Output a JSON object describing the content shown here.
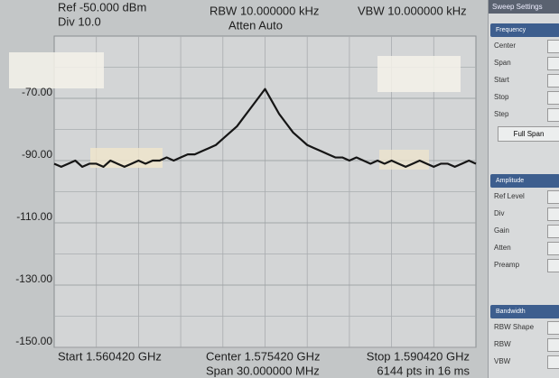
{
  "chart_data": {
    "type": "line",
    "header": {
      "ref": "Ref -50.000 dBm",
      "div": "Div 10.0",
      "rbw": "RBW 10.000000 kHz",
      "atten": "Atten Auto",
      "vbw": "VBW 10.000000 kHz"
    },
    "footer": {
      "start": "Start 1.560420 GHz",
      "center": "Center 1.575420 GHz",
      "span": "Span 30.000000 MHz",
      "stop": "Stop 1.590420 GHz",
      "points": "6144 pts in 16 ms"
    },
    "x": [
      1.56042,
      1.56092,
      1.56142,
      1.56192,
      1.56242,
      1.56292,
      1.56342,
      1.56392,
      1.56442,
      1.56492,
      1.56542,
      1.56592,
      1.56642,
      1.56692,
      1.56742,
      1.56792,
      1.56842,
      1.56892,
      1.56942,
      1.56992,
      1.57042,
      1.57092,
      1.57142,
      1.57192,
      1.57242,
      1.57292,
      1.57342,
      1.57392,
      1.57442,
      1.57492,
      1.57542,
      1.57592,
      1.57642,
      1.57692,
      1.57742,
      1.57792,
      1.57842,
      1.57892,
      1.57942,
      1.57992,
      1.58042,
      1.58092,
      1.58142,
      1.58192,
      1.58242,
      1.58292,
      1.58342,
      1.58392,
      1.58442,
      1.58492,
      1.58542,
      1.58592,
      1.58642,
      1.58692,
      1.58742,
      1.58792,
      1.58842,
      1.58892,
      1.58942,
      1.58992,
      1.59042
    ],
    "series": [
      {
        "color": "#151515",
        "values": [
          -91,
          -92,
          -91,
          -90,
          -92,
          -91,
          -91,
          -92,
          -90,
          -91,
          -92,
          -91,
          -90,
          -91,
          -90,
          -90,
          -89,
          -90,
          -89,
          -88,
          -88,
          -87,
          -86,
          -85,
          -83,
          -81,
          -79,
          -76,
          -73,
          -70,
          -67,
          -71,
          -75,
          -78,
          -81,
          -83,
          -85,
          -86,
          -87,
          -88,
          -89,
          -89,
          -90,
          -89,
          -90,
          -91,
          -90,
          -91,
          -90,
          -91,
          -92,
          -91,
          -90,
          -91,
          -92,
          -91,
          -91,
          -92,
          -91,
          -90,
          -91
        ]
      }
    ],
    "xlim": [
      1.56042,
      1.59042
    ],
    "ylim": [
      -150,
      -50
    ],
    "yticks": [
      {
        "value": -70,
        "label": "-70.00"
      },
      {
        "value": -90,
        "label": "-90.00"
      },
      {
        "value": -110,
        "label": "-110.00"
      },
      {
        "value": -130,
        "label": "-130.00"
      },
      {
        "value": -150,
        "label": "-150.00"
      }
    ],
    "grid": true
  },
  "panel": {
    "title": "Sweep Settings",
    "sections": [
      {
        "title": "Frequency",
        "items": [
          "Center",
          "Span",
          "Start",
          "Stop",
          "Step"
        ],
        "button": "Full Span"
      },
      {
        "title": "Amplitude",
        "items": [
          "Ref Level",
          "Div",
          "Gain",
          "Atten",
          "Preamp"
        ]
      },
      {
        "title": "Bandwidth",
        "items": [
          "RBW Shape",
          "RBW",
          "VBW"
        ]
      }
    ]
  }
}
